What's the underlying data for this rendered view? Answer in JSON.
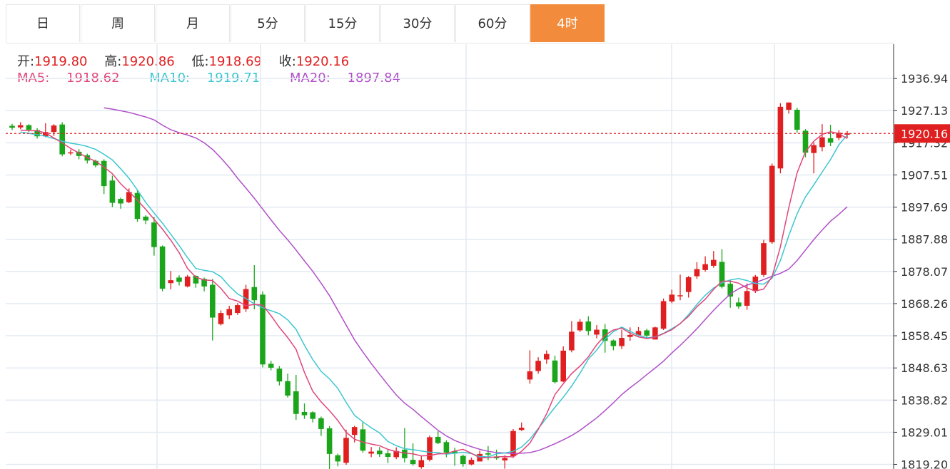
{
  "tabs": [
    {
      "label": "日",
      "active": false
    },
    {
      "label": "周",
      "active": false
    },
    {
      "label": "月",
      "active": false
    },
    {
      "label": "5分",
      "active": false
    },
    {
      "label": "15分",
      "active": false
    },
    {
      "label": "30分",
      "active": false
    },
    {
      "label": "60分",
      "active": false
    },
    {
      "label": "4时",
      "active": true
    }
  ],
  "ohlc": {
    "open_label": "开:",
    "open": "1919.80",
    "high_label": "高:",
    "high": "1920.86",
    "low_label": "低:",
    "low": "1918.69",
    "close_label": "收:",
    "close": "1920.16"
  },
  "ma": {
    "ma5_label": "MA5:",
    "ma5": "1918.62",
    "ma10_label": "MA10:",
    "ma10": "1919.71",
    "ma20_label": "MA20:",
    "ma20": "1897.84"
  },
  "colors": {
    "up": "#e02020",
    "down": "#1aa51a",
    "ma5": "#e0457a",
    "ma10": "#3cc6d0",
    "ma20": "#b04fc8",
    "accent": "#f28b3c",
    "grid": "#e3eaf2"
  },
  "chart_data": {
    "type": "candlestick",
    "y_ticks": [
      "1936.94",
      "1927.13",
      "1917.32",
      "1907.51",
      "1897.69",
      "1887.88",
      "1878.07",
      "1868.26",
      "1858.45",
      "1848.63",
      "1838.82",
      "1829.01",
      "1819.20"
    ],
    "ylim": [
      1817.8,
      1947.4
    ],
    "last_price": "1920.16",
    "candles": [
      [
        1922.5,
        1921.9,
        1923.1,
        1921.2
      ],
      [
        1922.0,
        1922.7,
        1923.6,
        1921.5
      ],
      [
        1922.7,
        1921.3,
        1923.0,
        1920.6
      ],
      [
        1921.2,
        1919.3,
        1921.8,
        1918.6
      ],
      [
        1919.3,
        1920.6,
        1923.3,
        1919.0
      ],
      [
        1920.6,
        1922.6,
        1923.0,
        1919.4
      ],
      [
        1922.9,
        1913.8,
        1923.6,
        1913.2
      ],
      [
        1914.2,
        1914.4,
        1915.2,
        1913.6
      ],
      [
        1914.6,
        1913.3,
        1915.4,
        1912.3
      ],
      [
        1913.5,
        1911.9,
        1914.0,
        1911.0
      ],
      [
        1911.8,
        1910.4,
        1912.2,
        1909.8
      ],
      [
        1911.8,
        1904.1,
        1912.3,
        1901.7
      ],
      [
        1905.8,
        1899.0,
        1907.3,
        1897.7
      ],
      [
        1900.2,
        1898.8,
        1900.6,
        1897.2
      ],
      [
        1899.2,
        1902.3,
        1903.4,
        1898.9
      ],
      [
        1902.0,
        1894.1,
        1903.0,
        1893.2
      ],
      [
        1894.8,
        1893.6,
        1895.2,
        1892.5
      ],
      [
        1893.0,
        1885.5,
        1894.7,
        1882.9
      ],
      [
        1885.7,
        1872.8,
        1886.0,
        1872.0
      ],
      [
        1874.5,
        1875.4,
        1878.2,
        1872.6
      ],
      [
        1876.2,
        1874.9,
        1876.9,
        1873.8
      ],
      [
        1873.5,
        1876.5,
        1877.0,
        1873.2
      ],
      [
        1876.7,
        1874.4,
        1876.9,
        1873.1
      ],
      [
        1875.8,
        1873.5,
        1876.2,
        1872.0
      ],
      [
        1874.0,
        1864.0,
        1875.8,
        1857.0
      ],
      [
        1862.0,
        1865.4,
        1866.2,
        1861.6
      ],
      [
        1864.7,
        1866.6,
        1867.6,
        1863.5
      ],
      [
        1865.4,
        1867.8,
        1868.4,
        1864.8
      ],
      [
        1866.6,
        1872.7,
        1874.0,
        1865.7
      ],
      [
        1873.3,
        1869.3,
        1880.0,
        1866.5
      ],
      [
        1871.0,
        1849.7,
        1872.0,
        1848.8
      ],
      [
        1849.9,
        1848.7,
        1850.8,
        1847.9
      ],
      [
        1848.4,
        1844.5,
        1849.2,
        1843.3
      ],
      [
        1844.6,
        1840.2,
        1846.9,
        1839.6
      ],
      [
        1841.5,
        1834.6,
        1846.5,
        1832.8
      ],
      [
        1835.2,
        1834.2,
        1837.8,
        1833.1
      ],
      [
        1835.1,
        1833.1,
        1835.4,
        1832.0
      ],
      [
        1833.3,
        1830.0,
        1833.8,
        1827.9
      ],
      [
        1830.2,
        1822.4,
        1830.9,
        1817.8
      ],
      [
        1822.0,
        1820.1,
        1822.5,
        1818.6
      ],
      [
        1819.7,
        1827.3,
        1829.8,
        1819.1
      ],
      [
        1828.2,
        1830.6,
        1831.0,
        1825.9
      ],
      [
        1829.9,
        1823.4,
        1832.1,
        1822.8
      ],
      [
        1822.5,
        1823.1,
        1824.5,
        1821.4
      ],
      [
        1823.4,
        1822.3,
        1824.5,
        1821.5
      ],
      [
        1822.6,
        1821.5,
        1823.6,
        1819.6
      ],
      [
        1821.4,
        1823.3,
        1824.4,
        1820.8
      ],
      [
        1823.7,
        1821.1,
        1830.3,
        1819.8
      ],
      [
        1820.6,
        1819.3,
        1825.6,
        1818.8
      ],
      [
        1818.4,
        1820.5,
        1821.9,
        1817.9
      ],
      [
        1820.6,
        1827.5,
        1828.0,
        1820.1
      ],
      [
        1827.6,
        1825.7,
        1829.3,
        1825.4
      ],
      [
        1826.0,
        1822.8,
        1826.6,
        1821.4
      ],
      [
        1823.2,
        1822.5,
        1824.3,
        1818.8
      ],
      [
        1821.8,
        1819.3,
        1822.2,
        1818.5
      ],
      [
        1819.2,
        1820.6,
        1821.3,
        1818.9
      ],
      [
        1820.1,
        1822.4,
        1823.4,
        1820.7
      ],
      [
        1822.6,
        1822.2,
        1824.8,
        1820.5
      ],
      [
        1821.4,
        1821.1,
        1823.7,
        1820.6
      ],
      [
        1820.4,
        1821.2,
        1822.0,
        1817.9
      ],
      [
        1821.7,
        1829.4,
        1830.0,
        1821.2
      ],
      [
        1829.7,
        1830.4,
        1832.0,
        1829.4
      ],
      [
        1845.1,
        1847.6,
        1854.0,
        1843.8
      ],
      [
        1847.7,
        1850.8,
        1851.9,
        1846.9
      ],
      [
        1851.2,
        1852.9,
        1854.0,
        1849.9
      ],
      [
        1850.9,
        1844.3,
        1852.4,
        1843.9
      ],
      [
        1844.5,
        1853.9,
        1855.2,
        1844.3
      ],
      [
        1854.0,
        1859.7,
        1862.9,
        1853.4
      ],
      [
        1860.1,
        1862.7,
        1863.5,
        1859.6
      ],
      [
        1862.8,
        1859.9,
        1864.4,
        1858.6
      ],
      [
        1858.8,
        1860.3,
        1861.7,
        1857.7
      ],
      [
        1860.4,
        1856.9,
        1862.0,
        1853.3
      ],
      [
        1857.0,
        1855.3,
        1857.3,
        1854.0
      ],
      [
        1855.3,
        1857.8,
        1860.3,
        1854.4
      ],
      [
        1858.1,
        1858.7,
        1861.0,
        1856.9
      ],
      [
        1858.6,
        1859.9,
        1861.1,
        1858.3
      ],
      [
        1860.1,
        1858.5,
        1860.6,
        1857.9
      ],
      [
        1857.3,
        1861.0,
        1861.2,
        1857.6
      ],
      [
        1860.6,
        1869.0,
        1869.8,
        1860.2
      ],
      [
        1868.9,
        1871.0,
        1872.5,
        1868.4
      ],
      [
        1870.5,
        1870.8,
        1877.1,
        1869.3
      ],
      [
        1871.8,
        1876.3,
        1876.7,
        1870.1
      ],
      [
        1876.6,
        1878.8,
        1880.9,
        1875.8
      ],
      [
        1878.5,
        1880.3,
        1882.7,
        1878.0
      ],
      [
        1879.8,
        1881.6,
        1884.3,
        1879.2
      ],
      [
        1881.0,
        1873.4,
        1884.9,
        1872.9
      ],
      [
        1874.3,
        1870.4,
        1875.6,
        1867.0
      ],
      [
        1868.6,
        1867.4,
        1870.1,
        1866.7
      ],
      [
        1867.6,
        1872.1,
        1874.4,
        1866.4
      ],
      [
        1872.1,
        1876.5,
        1877.0,
        1871.5
      ],
      [
        1877.0,
        1886.7,
        1887.7,
        1876.4
      ],
      [
        1887.0,
        1910.3,
        1911.0,
        1886.5
      ],
      [
        1909.5,
        1928.3,
        1929.4,
        1908.0
      ],
      [
        1927.4,
        1929.6,
        1929.7,
        1926.2
      ],
      [
        1927.4,
        1921.3,
        1928.0,
        1920.4
      ],
      [
        1921.0,
        1914.3,
        1921.5,
        1912.9
      ],
      [
        1914.2,
        1916.6,
        1917.4,
        1908.0
      ],
      [
        1916.0,
        1919.0,
        1923.0,
        1914.7
      ],
      [
        1918.7,
        1917.4,
        1922.8,
        1916.3
      ],
      [
        1918.8,
        1920.4,
        1921.2,
        1918.1
      ],
      [
        1919.8,
        1920.2,
        1920.9,
        1918.7
      ]
    ],
    "ma5": [
      1921.2,
      1921.0,
      1921.0,
      1920.3,
      1918.8,
      1917.3,
      1915.6,
      1914.2,
      1912.8,
      1911.7,
      1909.9,
      1907.9,
      1904.8,
      1902.4,
      1899.8,
      1897.0,
      1894.0,
      1891.0,
      1887.6,
      1883.8,
      1879.0,
      1876.3,
      1875.5,
      1875.3,
      1872.9,
      1869.8,
      1869.0,
      1867.6,
      1868.0,
      1867.8,
      1864.6,
      1861.0,
      1857.9,
      1854.3,
      1847.3,
      1841.5,
      1838.3,
      1835.6,
      1832.6,
      1829.0,
      1826.9,
      1826.0,
      1825.4,
      1824.9,
      1823.8,
      1823.1,
      1822.7,
      1822.4,
      1821.8,
      1821.9,
      1822.4,
      1822.5,
      1823.3,
      1823.8,
      1822.6,
      1821.2,
      1821.3,
      1821.5,
      1821.6,
      1821.5,
      1823.2,
      1825.7,
      1829.9,
      1834.6,
      1840.5,
      1843.8,
      1846.9,
      1849.2,
      1852.0,
      1855.7,
      1858.6,
      1860.2,
      1860.8,
      1859.2,
      1858.1,
      1857.6,
      1858.0,
      1859.1,
      1860.3,
      1862.2,
      1864.4,
      1867.3,
      1869.6,
      1872.6,
      1875.1,
      1875.1,
      1874.5,
      1873.0,
      1872.1,
      1872.7,
      1876.5,
      1885.6,
      1897.5,
      1908.2,
      1914.6,
      1917.8,
      1919.9,
      1920.7,
      1920.1,
      1918.6
    ],
    "ma10": [
      1920.6,
      1920.2,
      1919.8,
      1919.3,
      1918.6,
      1917.8,
      1917.2,
      1916.8,
      1916.2,
      1915.3,
      1913.8,
      1912.1,
      1909.4,
      1906.5,
      1902.9,
      1899.1,
      1895.9,
      1892.8,
      1889.4,
      1886.0,
      1882.3,
      1879.0,
      1878.4,
      1878.0,
      1876.5,
      1873.6,
      1871.2,
      1869.8,
      1868.2,
      1867.0,
      1866.1,
      1865.2,
      1863.3,
      1860.4,
      1855.6,
      1851.2,
      1847.6,
      1845.3,
      1842.4,
      1838.1,
      1834.2,
      1832.2,
      1830.4,
      1828.8,
      1826.2,
      1824.9,
      1824.0,
      1823.7,
      1823.3,
      1822.9,
      1822.8,
      1822.3,
      1822.6,
      1822.9,
      1822.5,
      1821.6,
      1821.5,
      1822.4,
      1822.7,
      1823.2,
      1824.5,
      1826.9,
      1830.1,
      1833.4,
      1836.6,
      1839.7,
      1843.1,
      1847.0,
      1851.3,
      1854.1,
      1857.4,
      1859.7,
      1861.1,
      1859.8,
      1858.6,
      1857.8,
      1858.1,
      1859.2,
      1860.6,
      1862.1,
      1864.9,
      1868.0,
      1870.8,
      1873.0,
      1874.6,
      1875.5,
      1875.9,
      1875.3,
      1874.4,
      1874.2,
      1876.0,
      1881.4,
      1889.0,
      1895.7,
      1900.8,
      1904.5,
      1908.4,
      1912.2,
      1916.7,
      1919.7
    ],
    "ma20": [
      1928.0,
      1927.6,
      1927.1,
      1926.6,
      1925.9,
      1925.2,
      1924.3,
      1922.7,
      1921.3,
      1920.4,
      1919.7,
      1918.8,
      1917.3,
      1915.3,
      1912.7,
      1909.8,
      1906.5,
      1903.5,
      1900.4,
      1897.1,
      1893.8,
      1890.6,
      1887.7,
      1884.6,
      1881.3,
      1878.1,
      1874.5,
      1870.7,
      1866.2,
      1861.7,
      1857.2,
      1853.5,
      1850.0,
      1846.7,
      1843.5,
      1840.4,
      1837.9,
      1836.0,
      1833.8,
      1831.7,
      1829.6,
      1827.9,
      1826.5,
      1825.5,
      1824.6,
      1823.8,
      1823.2,
      1822.8,
      1822.7,
      1822.5,
      1822.6,
      1822.8,
      1823.4,
      1824.4,
      1825.5,
      1826.7,
      1828.0,
      1829.6,
      1831.5,
      1833.4,
      1835.6,
      1838.0,
      1840.5,
      1842.6,
      1844.5,
      1846.6,
      1848.6,
      1850.7,
      1853.2,
      1855.5,
      1858.0,
      1860.6,
      1863.4,
      1866.2,
      1868.8,
      1871.2,
      1872.8,
      1873.9,
      1874.7,
      1875.6,
      1876.6,
      1877.5,
      1878.8,
      1881.4,
      1884.6,
      1887.8,
      1890.7,
      1893.4,
      1895.5,
      1897.8
    ]
  }
}
